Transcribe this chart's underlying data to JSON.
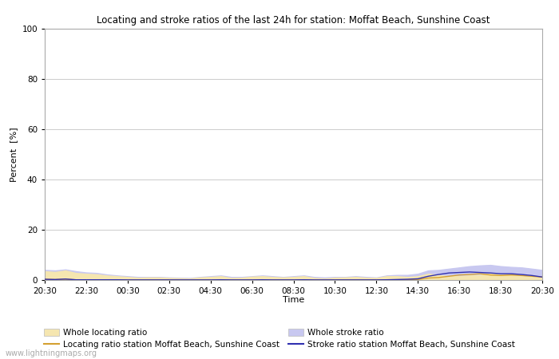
{
  "title": "Locating and stroke ratios of the last 24h for station: Moffat Beach, Sunshine Coast",
  "ylabel": "Percent  [%]",
  "xlabel": "Time",
  "watermark": "www.lightningmaps.org",
  "ylim": [
    0,
    100
  ],
  "yticks": [
    0,
    20,
    40,
    60,
    80,
    100
  ],
  "xtick_labels": [
    "20:30",
    "22:30",
    "00:30",
    "02:30",
    "04:30",
    "06:30",
    "08:30",
    "10:30",
    "12:30",
    "14:30",
    "16:30",
    "18:30",
    "20:30"
  ],
  "bg_color": "#ffffff",
  "grid_color": "#cccccc",
  "fill_locating_color": "#f5e6b0",
  "fill_stroke_color": "#c8c8f0",
  "line_locating_color": "#d4a030",
  "line_stroke_color": "#3030b0",
  "legend_labels": [
    "Whole locating ratio",
    "Locating ratio station Moffat Beach, Sunshine Coast",
    "Whole stroke ratio",
    "Stroke ratio station Moffat Beach, Sunshine Coast"
  ],
  "whole_locating": [
    3.5,
    3.2,
    3.8,
    2.8,
    2.5,
    2.3,
    1.8,
    1.5,
    1.2,
    0.9,
    1.0,
    1.0,
    0.8,
    0.7,
    0.6,
    1.0,
    1.2,
    1.5,
    0.8,
    0.9,
    1.3,
    1.5,
    1.2,
    1.0,
    1.2,
    1.5,
    0.8,
    0.6,
    0.9,
    1.0,
    1.2,
    0.9,
    0.8,
    1.5,
    1.5,
    1.2,
    1.5,
    2.5,
    2.0,
    1.5,
    1.5,
    1.8,
    2.0,
    2.5,
    2.2,
    2.0,
    1.8,
    1.5,
    1.5
  ],
  "station_locating": [
    0.3,
    0.2,
    0.3,
    0.1,
    0.1,
    0.1,
    0.1,
    0.1,
    0.05,
    0.05,
    0.05,
    0.05,
    0.05,
    0.05,
    0.05,
    0.05,
    0.05,
    0.1,
    0.05,
    0.05,
    0.05,
    0.1,
    0.05,
    0.05,
    0.05,
    0.1,
    0.05,
    0.05,
    0.05,
    0.05,
    0.05,
    0.05,
    0.05,
    0.1,
    0.1,
    0.1,
    0.2,
    0.8,
    1.0,
    1.5,
    2.0,
    2.2,
    2.5,
    2.0,
    1.8,
    2.0,
    1.8,
    1.5,
    1.2
  ],
  "whole_stroke": [
    4.0,
    3.8,
    4.2,
    3.5,
    3.0,
    2.8,
    2.2,
    1.8,
    1.5,
    1.2,
    1.2,
    1.2,
    1.0,
    0.9,
    0.8,
    1.2,
    1.5,
    1.8,
    1.2,
    1.2,
    1.5,
    1.8,
    1.5,
    1.2,
    1.5,
    1.8,
    1.2,
    1.0,
    1.2,
    1.2,
    1.5,
    1.2,
    1.0,
    1.8,
    2.0,
    2.0,
    2.5,
    3.8,
    4.0,
    4.5,
    5.0,
    5.5,
    5.8,
    6.0,
    5.5,
    5.2,
    5.0,
    4.5,
    4.0
  ],
  "station_stroke": [
    0.3,
    0.2,
    0.4,
    0.1,
    0.1,
    0.1,
    0.1,
    0.1,
    0.05,
    0.05,
    0.05,
    0.05,
    0.05,
    0.05,
    0.05,
    0.05,
    0.05,
    0.1,
    0.05,
    0.05,
    0.05,
    0.1,
    0.05,
    0.05,
    0.05,
    0.1,
    0.05,
    0.05,
    0.05,
    0.05,
    0.05,
    0.05,
    0.05,
    0.1,
    0.2,
    0.3,
    0.5,
    1.5,
    2.2,
    2.8,
    3.0,
    3.2,
    3.0,
    2.8,
    2.5,
    2.5,
    2.2,
    1.8,
    1.2
  ]
}
